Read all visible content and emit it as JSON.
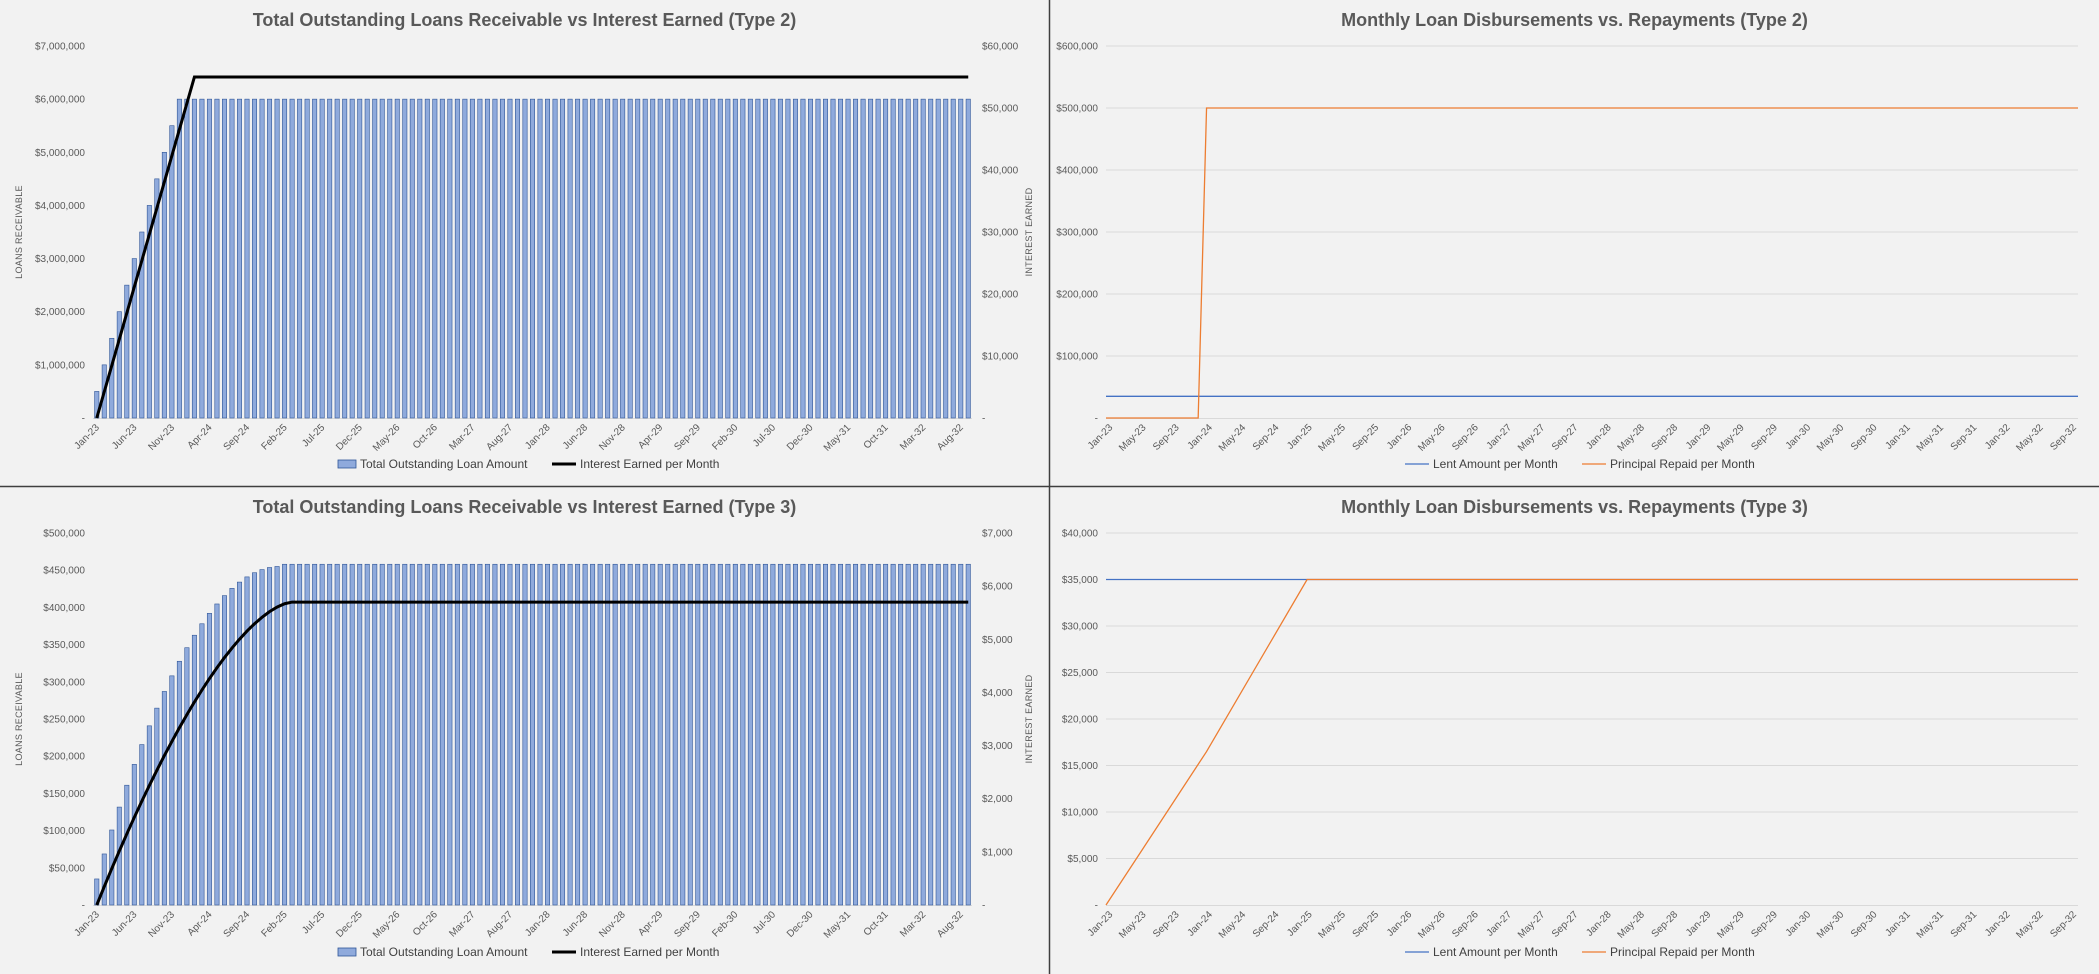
{
  "colors": {
    "background": "#f2f2f2",
    "bar_fill": "#8faadc",
    "bar_stroke": "#2f5597",
    "interest_line": "#000000",
    "lent_line": "#4472c4",
    "repaid_line": "#ed7d31",
    "grid": "#d9d9d9",
    "divider": "#3f3f3f"
  },
  "chart_data": [
    {
      "type": "bar",
      "title": "Total Outstanding Loans Receivable vs Interest Earned (Type 2)",
      "xlabel": "",
      "ylabel": "LOANS RECEIVABLE",
      "y2label": "INTEREST EARNED",
      "x_start": "2023-01",
      "months": 117,
      "x_tick_labels": [
        "Jan-23",
        "Jun-23",
        "Nov-23",
        "Apr-24",
        "Sep-24",
        "Feb-25",
        "Jul-25",
        "Dec-25",
        "May-26",
        "Oct-26",
        "Mar-27",
        "Aug-27",
        "Jan-28",
        "Jun-28",
        "Nov-28",
        "Apr-29",
        "Sep-29",
        "Feb-30",
        "Jul-30",
        "Dec-30",
        "May-31",
        "Oct-31",
        "Mar-32",
        "Aug-32"
      ],
      "ylim": [
        0,
        7000000
      ],
      "y_tick_labels": [
        "-",
        "$1,000,000",
        "$2,000,000",
        "$3,000,000",
        "$4,000,000",
        "$5,000,000",
        "$6,000,000",
        "$7,000,000"
      ],
      "y2lim": [
        0,
        60000
      ],
      "y2_tick_labels": [
        "-",
        "$10,000",
        "$20,000",
        "$30,000",
        "$40,000",
        "$50,000",
        "$60,000"
      ],
      "legend": [
        "Total Outstanding Loan Amount",
        "Interest Earned per Month"
      ],
      "legend_position": "bottom",
      "grid": false,
      "series": [
        {
          "name": "Total Outstanding Loan Amount",
          "kind": "bar",
          "axis": "left",
          "ramp": {
            "start": 500000,
            "step": 500000,
            "months": 12
          },
          "plateau": 6000000
        },
        {
          "name": "Interest Earned per Month",
          "kind": "line",
          "axis": "right",
          "ramp": {
            "start": 0,
            "end": 55000,
            "months": 13
          },
          "plateau": 55000
        }
      ]
    },
    {
      "type": "line",
      "title": "Monthly Loan Disbursements vs. Repayments (Type 2)",
      "xlabel": "",
      "ylabel": "",
      "x_start": "2023-01",
      "months": 117,
      "x_tick_labels": [
        "Jan-23",
        "May-23",
        "Sep-23",
        "Jan-24",
        "May-24",
        "Sep-24",
        "Jan-25",
        "May-25",
        "Sep-25",
        "Jan-26",
        "May-26",
        "Sep-26",
        "Jan-27",
        "May-27",
        "Sep-27",
        "Jan-28",
        "May-28",
        "Sep-28",
        "Jan-29",
        "May-29",
        "Sep-29",
        "Jan-30",
        "May-30",
        "Sep-30",
        "Jan-31",
        "May-31",
        "Sep-31",
        "Jan-32",
        "May-32",
        "Sep-32"
      ],
      "ylim": [
        0,
        600000
      ],
      "y_tick_labels": [
        "-",
        "$100,000",
        "$200,000",
        "$300,000",
        "$400,000",
        "$500,000",
        "$600,000"
      ],
      "legend": [
        "Lent Amount per Month",
        "Principal Repaid per Month"
      ],
      "legend_position": "bottom",
      "grid": true,
      "series": [
        {
          "name": "Lent Amount per Month",
          "points": [
            [
              0,
              35000
            ],
            [
              116,
              35000
            ]
          ]
        },
        {
          "name": "Principal Repaid per Month",
          "points": [
            [
              0,
              0
            ],
            [
              11,
              0
            ],
            [
              12,
              500000
            ],
            [
              116,
              500000
            ]
          ]
        }
      ]
    },
    {
      "type": "bar",
      "title": "Total Outstanding Loans Receivable vs Interest Earned (Type 3)",
      "xlabel": "",
      "ylabel": "LOANS RECEIVABLE",
      "y2label": "INTEREST EARNED",
      "x_start": "2023-01",
      "months": 117,
      "x_tick_labels": [
        "Jan-23",
        "Jun-23",
        "Nov-23",
        "Apr-24",
        "Sep-24",
        "Feb-25",
        "Jul-25",
        "Dec-25",
        "May-26",
        "Oct-26",
        "Mar-27",
        "Aug-27",
        "Jan-28",
        "Jun-28",
        "Nov-28",
        "Apr-29",
        "Sep-29",
        "Feb-30",
        "Jul-30",
        "Dec-30",
        "May-31",
        "Oct-31",
        "Mar-32",
        "Aug-32"
      ],
      "ylim": [
        0,
        500000
      ],
      "y_tick_labels": [
        "-",
        "$50,000",
        "$100,000",
        "$150,000",
        "$200,000",
        "$250,000",
        "$300,000",
        "$350,000",
        "$400,000",
        "$450,000",
        "$500,000"
      ],
      "y2lim": [
        0,
        7000
      ],
      "y2_tick_labels": [
        "-",
        "$1,000",
        "$2,000",
        "$3,000",
        "$4,000",
        "$5,000",
        "$6,000",
        "$7,000"
      ],
      "legend": [
        "Total Outstanding Loan Amount",
        "Interest Earned per Month"
      ],
      "legend_position": "bottom",
      "grid": false,
      "series": [
        {
          "name": "Total Outstanding Loan Amount",
          "kind": "bar",
          "axis": "left",
          "ramp": {
            "start": 35000,
            "monthly_add": 35000,
            "monthly_repay_start": 0,
            "monthly_repay_end": 35000,
            "months": 25
          },
          "plateau": 458000
        },
        {
          "name": "Interest Earned per Month",
          "kind": "line",
          "axis": "right",
          "ramp": {
            "start": 0,
            "end": 5700,
            "months": 26
          },
          "plateau": 5700
        }
      ]
    },
    {
      "type": "line",
      "title": "Monthly Loan Disbursements vs. Repayments (Type 3)",
      "xlabel": "",
      "ylabel": "",
      "x_start": "2023-01",
      "months": 117,
      "x_tick_labels": [
        "Jan-23",
        "May-23",
        "Sep-23",
        "Jan-24",
        "May-24",
        "Sep-24",
        "Jan-25",
        "May-25",
        "Sep-25",
        "Jan-26",
        "May-26",
        "Sep-26",
        "Jan-27",
        "May-27",
        "Sep-27",
        "Jan-28",
        "May-28",
        "Sep-28",
        "Jan-29",
        "May-29",
        "Sep-29",
        "Jan-30",
        "May-30",
        "Sep-30",
        "Jan-31",
        "May-31",
        "Sep-31",
        "Jan-32",
        "May-32",
        "Sep-32"
      ],
      "ylim": [
        0,
        40000
      ],
      "y_tick_labels": [
        "-",
        "$5,000",
        "$10,000",
        "$15,000",
        "$20,000",
        "$25,000",
        "$30,000",
        "$35,000",
        "$40,000"
      ],
      "legend": [
        "Lent Amount per Month",
        "Principal Repaid per Month"
      ],
      "legend_position": "bottom",
      "grid": true,
      "series": [
        {
          "name": "Lent Amount per Month",
          "points": [
            [
              0,
              35000
            ],
            [
              116,
              35000
            ]
          ]
        },
        {
          "name": "Principal Repaid per Month",
          "points": [
            [
              0,
              0
            ],
            [
              12,
              16500
            ],
            [
              24,
              35000
            ],
            [
              116,
              35000
            ]
          ]
        }
      ]
    }
  ]
}
